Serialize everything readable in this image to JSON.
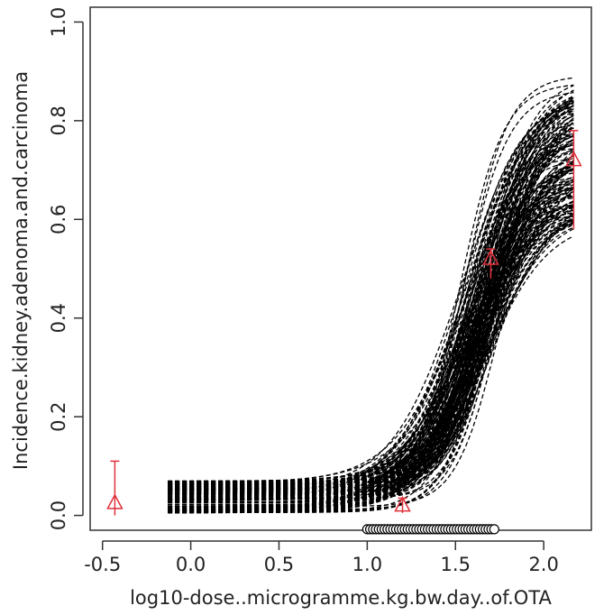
{
  "chart_data": {
    "type": "line",
    "title": "",
    "xlabel": "log10-dose..microgramme.kg.bw.day..of.OTA",
    "ylabel": "Incidence.kidney.adenoma.and.carcinoma",
    "xlim": [
      -0.57,
      2.27
    ],
    "ylim": [
      -0.03,
      1.03
    ],
    "x_ticks": [
      -0.5,
      0.0,
      0.5,
      1.0,
      1.5,
      2.0
    ],
    "x_tick_labels": [
      "-0.5",
      "0.0",
      "0.5",
      "1.0",
      "1.5",
      "2.0"
    ],
    "y_ticks": [
      0.0,
      0.2,
      0.4,
      0.6,
      0.8,
      1.0
    ],
    "y_tick_labels": [
      "0.0",
      "0.2",
      "0.4",
      "0.6",
      "0.8",
      "1.0"
    ],
    "grid": false,
    "legend": "none",
    "colors": {
      "curves": "#000000",
      "observed": "#e0303a",
      "rug": "#000000"
    },
    "curve_series": {
      "name": "model fits (many dashed curves)",
      "count": 160,
      "x_range": [
        -0.13,
        2.17
      ],
      "median_curve": [
        {
          "x": -0.13,
          "y": 0.035
        },
        {
          "x": 0.5,
          "y": 0.04
        },
        {
          "x": 1.0,
          "y": 0.055
        },
        {
          "x": 1.3,
          "y": 0.1
        },
        {
          "x": 1.5,
          "y": 0.2
        },
        {
          "x": 1.7,
          "y": 0.45
        },
        {
          "x": 1.9,
          "y": 0.62
        },
        {
          "x": 2.17,
          "y": 0.7
        }
      ]
    },
    "observed": [
      {
        "x": -0.43,
        "y": 0.025,
        "lower": 0.0,
        "upper": 0.11
      },
      {
        "x": 1.2,
        "y": 0.02,
        "lower": 0.005,
        "upper": 0.035
      },
      {
        "x": 1.7,
        "y": 0.52,
        "lower": 0.48,
        "upper": 0.54
      },
      {
        "x": 2.17,
        "y": 0.72,
        "lower": 0.58,
        "upper": 0.78
      }
    ],
    "rug_x_range": [
      1.0,
      1.72
    ]
  }
}
